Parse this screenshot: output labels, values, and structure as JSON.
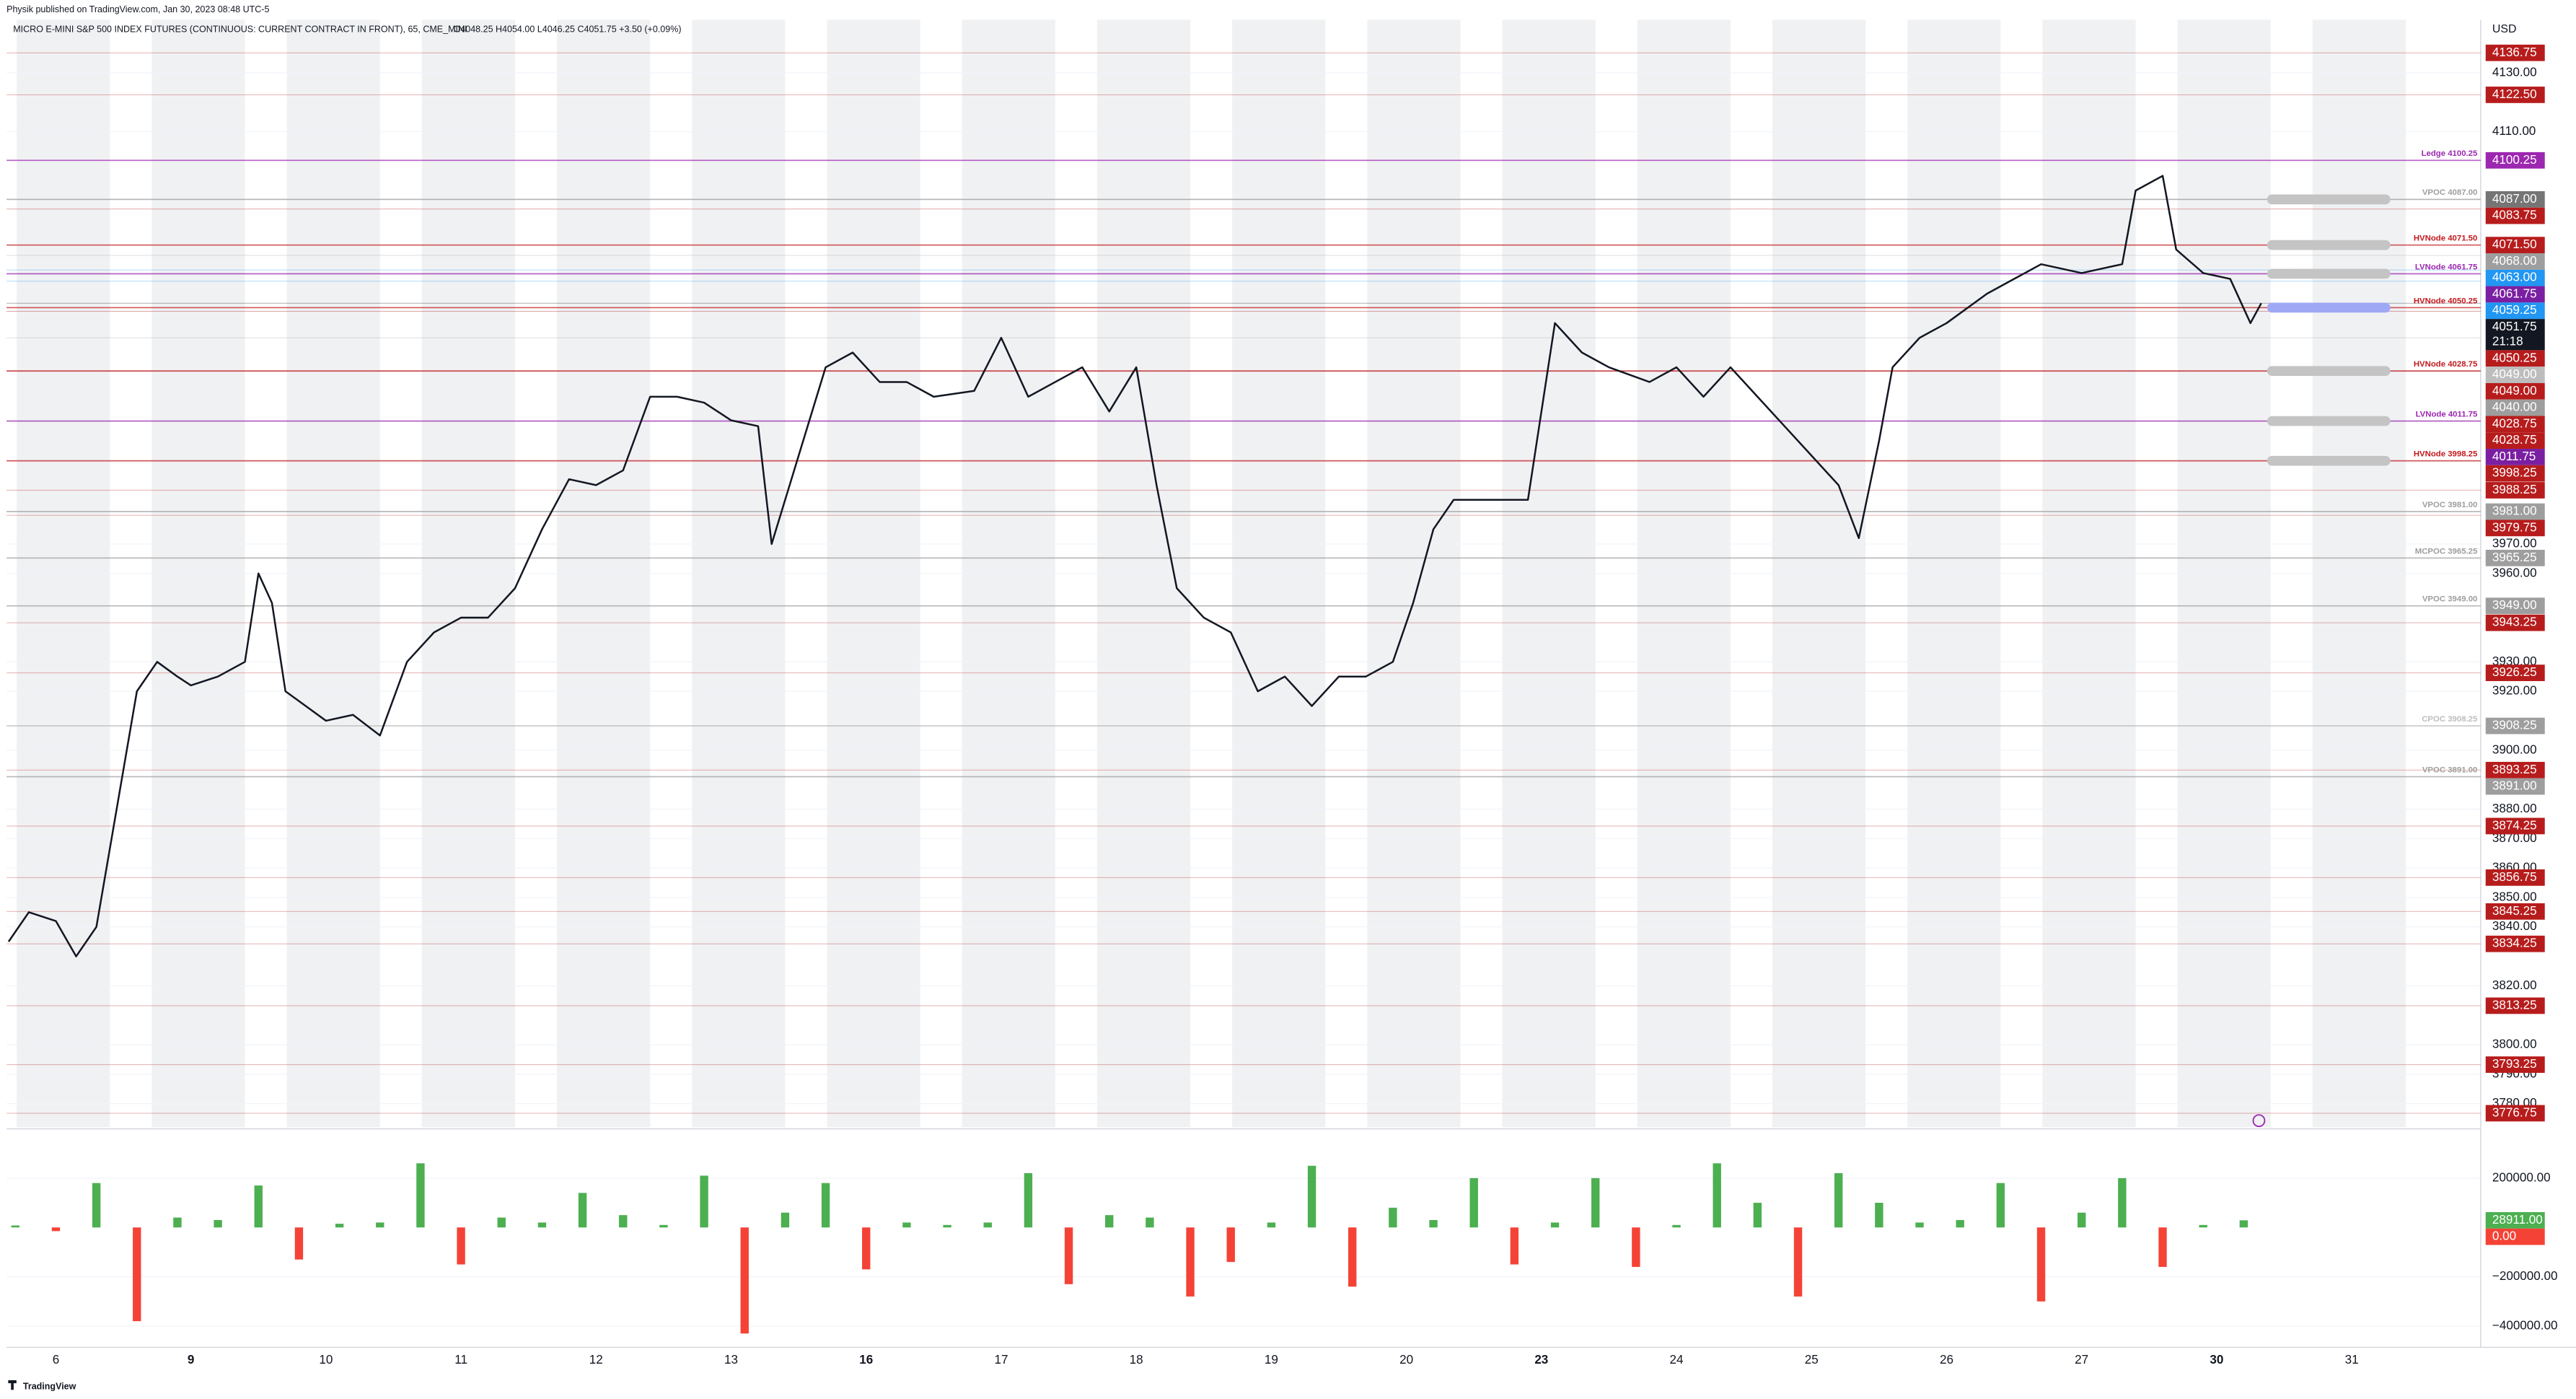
{
  "chart_data": {
    "type": "line",
    "published": "Physik published on TradingView.com, Jan 30, 2023 08:48 UTC-5",
    "title": "MICRO E-MINI S&P 500 INDEX FUTURES (CONTINUOUS: CURRENT CONTRACT IN FRONT), 65, CME_MINI",
    "ohlc": "O4048.25  H4054.00  L4046.25  C4051.75  +3.50 (+0.09%)",
    "currency": "USD",
    "brand": "TradingView",
    "categories": [
      "6",
      "9",
      "10",
      "11",
      "12",
      "13",
      "16",
      "17",
      "18",
      "19",
      "20",
      "23",
      "24",
      "25",
      "26",
      "27",
      "30",
      "31"
    ],
    "bold_categories": [
      "9",
      "16",
      "23",
      "30"
    ],
    "xlim": [
      -0.365,
      17.955
    ],
    "ylim": [
      3772,
      4148
    ],
    "yticks": [
      {
        "value": 4130,
        "label": "4130.00"
      },
      {
        "value": 4110,
        "label": "4110.00"
      },
      {
        "value": 3970,
        "label": "3970.00"
      },
      {
        "value": 3960,
        "label": "3960.00"
      },
      {
        "value": 3930,
        "label": "3930.00"
      },
      {
        "value": 3920,
        "label": "3920.00"
      },
      {
        "value": 3900,
        "label": "3900.00"
      },
      {
        "value": 3880,
        "label": "3880.00"
      },
      {
        "value": 3870,
        "label": "3870.00"
      },
      {
        "value": 3860,
        "label": "3860.00"
      },
      {
        "value": 3850,
        "label": "3850.00"
      },
      {
        "value": 3840,
        "label": "3840.00"
      },
      {
        "value": 3820,
        "label": "3820.00"
      },
      {
        "value": 3800,
        "label": "3800.00"
      },
      {
        "value": 3790,
        "label": "3790.00"
      },
      {
        "value": 3780,
        "label": "3780.00"
      }
    ],
    "grid": true,
    "price": {
      "color": "#131722",
      "x": [
        -0.35,
        -0.2,
        0,
        0.15,
        0.3,
        0.45,
        0.6,
        0.75,
        0.9,
        1.0,
        1.2,
        1.4,
        1.5,
        1.6,
        1.7,
        1.85,
        2.0,
        2.2,
        2.4,
        2.6,
        2.8,
        3.0,
        3.2,
        3.4,
        3.6,
        3.8,
        4.0,
        4.2,
        4.4,
        4.6,
        4.8,
        5.0,
        5.2,
        5.3,
        5.5,
        5.7,
        5.9,
        6.1,
        6.3,
        6.5,
        6.8,
        7.0,
        7.2,
        7.4,
        7.6,
        7.8,
        8.0,
        8.15,
        8.3,
        8.5,
        8.7,
        8.9,
        9.1,
        9.3,
        9.5,
        9.7,
        9.9,
        10.05,
        10.2,
        10.35,
        10.6,
        10.9,
        11.1,
        11.3,
        11.5,
        11.8,
        12.0,
        12.2,
        12.4,
        12.6,
        12.8,
        13.0,
        13.2,
        13.35,
        13.5,
        13.6,
        13.8,
        14.0,
        14.3,
        14.7,
        15.0,
        15.3,
        15.4,
        15.6,
        15.7,
        15.9,
        16.1,
        16.25,
        16.33
      ],
      "values": [
        3835,
        3845,
        3842,
        3830,
        3840,
        3880,
        3920,
        3930,
        3925,
        3922,
        3925,
        3930,
        3960,
        3950,
        3920,
        3915,
        3910,
        3912,
        3905,
        3930,
        3940,
        3945,
        3945,
        3955,
        3975,
        3992,
        3990,
        3995,
        4020,
        4020,
        4018,
        4012,
        4010,
        3970,
        4000,
        4030,
        4035,
        4025,
        4025,
        4020,
        4022,
        4040,
        4020,
        4025,
        4030,
        4015,
        4030,
        3990,
        3955,
        3945,
        3940,
        3920,
        3925,
        3915,
        3925,
        3925,
        3930,
        3950,
        3975,
        3985,
        3985,
        3985,
        4045,
        4035,
        4030,
        4025,
        4030,
        4020,
        4030,
        4020,
        4010,
        4000,
        3990,
        3972,
        4005,
        4030,
        4040,
        4045,
        4055,
        4065,
        4062,
        4065,
        4090,
        4095,
        4070,
        4062,
        4060,
        4045,
        4051.75
      ]
    },
    "levels": [
      {
        "label": "Ledge 4100.25",
        "value": 4100.25,
        "color": "#9c27b0"
      },
      {
        "label": "VPOC 4087.00",
        "value": 4087,
        "color": "#9e9e9e"
      },
      {
        "label": "HVNode 4071.50",
        "value": 4071.5,
        "color": "#c2191d"
      },
      {
        "label": "LVNode 4061.75",
        "value": 4061.75,
        "color": "#9c27b0"
      },
      {
        "label": "HVNode 4050.25",
        "value": 4050.25,
        "color": "#c2191d"
      },
      {
        "label": "HVNode 4028.75",
        "value": 4028.75,
        "color": "#c2191d"
      },
      {
        "label": "LVNode 4011.75",
        "value": 4011.75,
        "color": "#9c27b0"
      },
      {
        "label": "HVNode 3998.25",
        "value": 3998.25,
        "color": "#c2191d"
      },
      {
        "label": "VPOC 3981.00",
        "value": 3981,
        "color": "#9e9e9e"
      },
      {
        "label": "MCPOC 3965.25",
        "value": 3965.25,
        "color": "#9e9e9e"
      },
      {
        "label": "VPOC 3949.00",
        "value": 3949,
        "color": "#9e9e9e"
      },
      {
        "label": "CPOC 3908.25",
        "value": 3908.25,
        "color": "#bdbdbd"
      },
      {
        "label": "VPOC 3891.00",
        "value": 3891,
        "color": "#9e9e9e"
      }
    ],
    "price_tags": [
      {
        "value": 4136.75,
        "label": "4136.75",
        "color": "#b71c1c"
      },
      {
        "value": 4122.5,
        "label": "4122.50",
        "color": "#b71c1c"
      },
      {
        "value": 4100.25,
        "label": "4100.25",
        "color": "#9c27b0"
      },
      {
        "value": 4087,
        "label": "4087.00",
        "color": "#757575"
      },
      {
        "value": 4083.75,
        "label": "4083.75",
        "color": "#b71c1c"
      },
      {
        "value": 4071.5,
        "label": "4071.50",
        "color": "#b71c1c"
      },
      {
        "value": 4068,
        "label": "4068.00",
        "color": "#9e9e9e"
      },
      {
        "value": 4063,
        "label": "4063.00",
        "color": "#2196f3"
      },
      {
        "value": 4061.75,
        "label": "4061.75",
        "color": "#7b1fa2"
      },
      {
        "value": 4059.25,
        "label": "4059.25",
        "color": "#2196f3"
      },
      {
        "value": 4051.75,
        "label": "4051.75",
        "color": "#131722",
        "countdown": "21:18"
      },
      {
        "value": 4050.25,
        "label": "4050.25",
        "color": "#b71c1c"
      },
      {
        "value": 4049,
        "label": "4049.00",
        "color": "#bdbdbd"
      },
      {
        "value": 4049,
        "label": "4049.00",
        "color": "#b71c1c"
      },
      {
        "value": 4040,
        "label": "4040.00",
        "color": "#9e9e9e"
      },
      {
        "value": 4028.75,
        "label": "4028.75",
        "color": "#b71c1c"
      },
      {
        "value": 4028.75,
        "label": "4028.75",
        "color": "#b71c1c"
      },
      {
        "value": 4011.75,
        "label": "4011.75",
        "color": "#7b1fa2"
      },
      {
        "value": 3998.25,
        "label": "3998.25",
        "color": "#b71c1c"
      },
      {
        "value": 3988.25,
        "label": "3988.25",
        "color": "#b71c1c"
      },
      {
        "value": 3981,
        "label": "3981.00",
        "color": "#9e9e9e"
      },
      {
        "value": 3979.75,
        "label": "3979.75",
        "color": "#b71c1c"
      },
      {
        "value": 3965.25,
        "label": "3965.25",
        "color": "#9e9e9e"
      },
      {
        "value": 3949,
        "label": "3949.00",
        "color": "#9e9e9e"
      },
      {
        "value": 3943.25,
        "label": "3943.25",
        "color": "#b71c1c"
      },
      {
        "value": 3926.25,
        "label": "3926.25",
        "color": "#b71c1c"
      },
      {
        "value": 3908.25,
        "label": "3908.25",
        "color": "#9e9e9e"
      },
      {
        "value": 3893.25,
        "label": "3893.25",
        "color": "#b71c1c"
      },
      {
        "value": 3891,
        "label": "3891.00",
        "color": "#9e9e9e"
      },
      {
        "value": 3874.25,
        "label": "3874.25",
        "color": "#b71c1c"
      },
      {
        "value": 3856.75,
        "label": "3856.75",
        "color": "#b71c1c"
      },
      {
        "value": 3845.25,
        "label": "3845.25",
        "color": "#b71c1c"
      },
      {
        "value": 3834.25,
        "label": "3834.25",
        "color": "#b71c1c"
      },
      {
        "value": 3813.25,
        "label": "3813.25",
        "color": "#b71c1c"
      },
      {
        "value": 3793.25,
        "label": "3793.25",
        "color": "#b71c1c"
      },
      {
        "value": 3776.75,
        "label": "3776.75",
        "color": "#b71c1c"
      }
    ],
    "delta": {
      "pos_color": "#4caf50",
      "neg_color": "#f44336",
      "ylim": [
        -473000,
        393000
      ],
      "yticks": [
        {
          "value": 200000,
          "label": "200000.00"
        },
        {
          "value": -200000,
          "label": "−200000.00"
        },
        {
          "value": -400000,
          "label": "−400000.00"
        }
      ],
      "x": [
        -0.3,
        0,
        0.3,
        0.6,
        0.9,
        1.2,
        1.5,
        1.8,
        2.1,
        2.4,
        2.7,
        3,
        3.3,
        3.6,
        3.9,
        4.2,
        4.5,
        4.8,
        5.1,
        5.4,
        5.7,
        6,
        6.3,
        6.6,
        6.9,
        7.2,
        7.5,
        7.8,
        8.1,
        8.4,
        8.7,
        9,
        9.3,
        9.6,
        9.9,
        10.2,
        10.5,
        10.8,
        11.1,
        11.4,
        11.7,
        12,
        12.3,
        12.6,
        12.9,
        13.2,
        13.5,
        13.8,
        14.1,
        14.4,
        14.7,
        15,
        15.3,
        15.6,
        15.9,
        16.2
      ],
      "values": [
        8000,
        -15000,
        180000,
        -380000,
        40000,
        30000,
        170000,
        -130000,
        15000,
        20000,
        260000,
        -150000,
        40000,
        20000,
        140000,
        50000,
        10000,
        210000,
        -430000,
        60000,
        180000,
        -170000,
        20000,
        10000,
        20000,
        220000,
        -230000,
        50000,
        40000,
        -280000,
        -140000,
        20000,
        250000,
        -240000,
        80000,
        30000,
        200000,
        -150000,
        20000,
        200000,
        -160000,
        10000,
        260000,
        100000,
        -280000,
        220000,
        100000,
        20000,
        30000,
        180000,
        -300000,
        60000,
        200000,
        -160000,
        10000,
        28911
      ],
      "tags": [
        {
          "value": 28911,
          "label": "28911.00",
          "color": "#4caf50"
        },
        {
          "value": 0,
          "label": "0.00",
          "color": "#f44336"
        }
      ]
    }
  }
}
